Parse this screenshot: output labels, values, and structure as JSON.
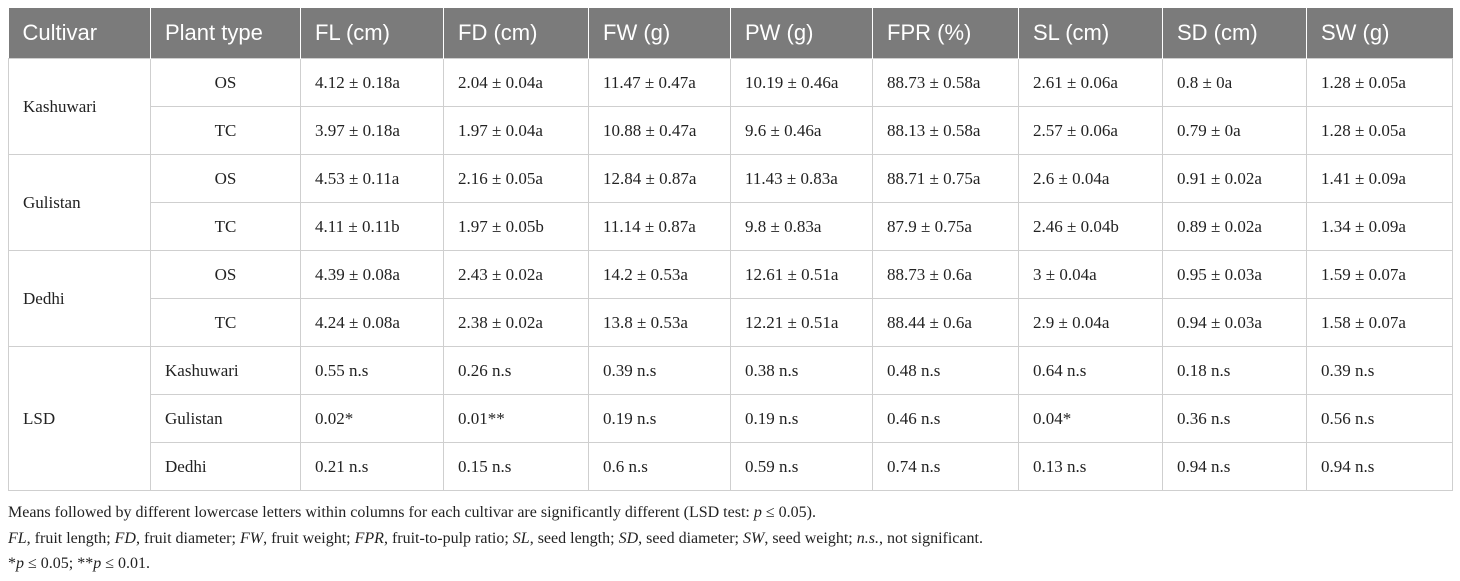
{
  "table": {
    "header": [
      "Cultivar",
      "Plant type",
      "FL (cm)",
      "FD (cm)",
      "FW (g)",
      "PW (g)",
      "FPR (%)",
      "SL (cm)",
      "SD (cm)",
      "SW (g)"
    ],
    "groups": [
      {
        "cultivar": "Kashuwari",
        "rows": [
          [
            "OS",
            "4.12 ± 0.18a",
            "2.04 ± 0.04a",
            "11.47 ± 0.47a",
            "10.19 ± 0.46a",
            "88.73 ± 0.58a",
            "2.61 ± 0.06a",
            "0.8 ± 0a",
            "1.28 ± 0.05a"
          ],
          [
            "TC",
            "3.97 ± 0.18a",
            "1.97 ± 0.04a",
            "10.88 ± 0.47a",
            "9.6 ± 0.46a",
            "88.13 ± 0.58a",
            "2.57 ± 0.06a",
            "0.79 ± 0a",
            "1.28 ± 0.05a"
          ]
        ]
      },
      {
        "cultivar": "Gulistan",
        "rows": [
          [
            "OS",
            "4.53 ± 0.11a",
            "2.16 ± 0.05a",
            "12.84 ± 0.87a",
            "11.43 ± 0.83a",
            "88.71 ± 0.75a",
            "2.6 ± 0.04a",
            "0.91 ± 0.02a",
            "1.41 ± 0.09a"
          ],
          [
            "TC",
            "4.11 ± 0.11b",
            "1.97 ± 0.05b",
            "11.14 ± 0.87a",
            "9.8 ± 0.83a",
            "87.9 ± 0.75a",
            "2.46 ± 0.04b",
            "0.89 ± 0.02a",
            "1.34 ± 0.09a"
          ]
        ]
      },
      {
        "cultivar": "Dedhi",
        "rows": [
          [
            "OS",
            "4.39 ± 0.08a",
            "2.43 ± 0.02a",
            "14.2 ± 0.53a",
            "12.61 ± 0.51a",
            "88.73 ± 0.6a",
            "3 ± 0.04a",
            "0.95 ± 0.03a",
            "1.59 ± 0.07a"
          ],
          [
            "TC",
            "4.24 ± 0.08a",
            "2.38 ± 0.02a",
            "13.8 ± 0.53a",
            "12.21 ± 0.51a",
            "88.44 ± 0.6a",
            "2.9 ± 0.04a",
            "0.94 ± 0.03a",
            "1.58 ± 0.07a"
          ]
        ]
      },
      {
        "cultivar": "LSD",
        "rows": [
          [
            "Kashuwari",
            "0.55 n.s",
            "0.26 n.s",
            "0.39 n.s",
            "0.38 n.s",
            "0.48 n.s",
            "0.64 n.s",
            "0.18 n.s",
            "0.39 n.s"
          ],
          [
            "Gulistan",
            "0.02*",
            "0.01**",
            "0.19 n.s",
            "0.19 n.s",
            "0.46 n.s",
            "0.04*",
            "0.36 n.s",
            "0.56 n.s"
          ],
          [
            "Dedhi",
            "0.21 n.s",
            "0.15 n.s",
            "0.6 n.s",
            "0.59 n.s",
            "0.74 n.s",
            "0.13 n.s",
            "0.94 n.s",
            "0.94 n.s"
          ]
        ]
      }
    ]
  },
  "notes": [
    [
      "Means followed by different lowercase letters within columns for each cultivar are significantly different (LSD test: ",
      "p",
      " ≤ 0.05)."
    ],
    [
      "FL",
      ", fruit length; ",
      "FD",
      ", fruit diameter; ",
      "FW",
      ", fruit weight; ",
      "FPR",
      ", fruit-to-pulp ratio; ",
      "SL",
      ", seed length; ",
      "SD",
      ", seed diameter; ",
      "SW",
      ", seed weight; ",
      "n.s.",
      ", not significant."
    ],
    [
      "*",
      "p",
      " ≤ 0.05; **",
      "p",
      " ≤ 0.01."
    ]
  ]
}
